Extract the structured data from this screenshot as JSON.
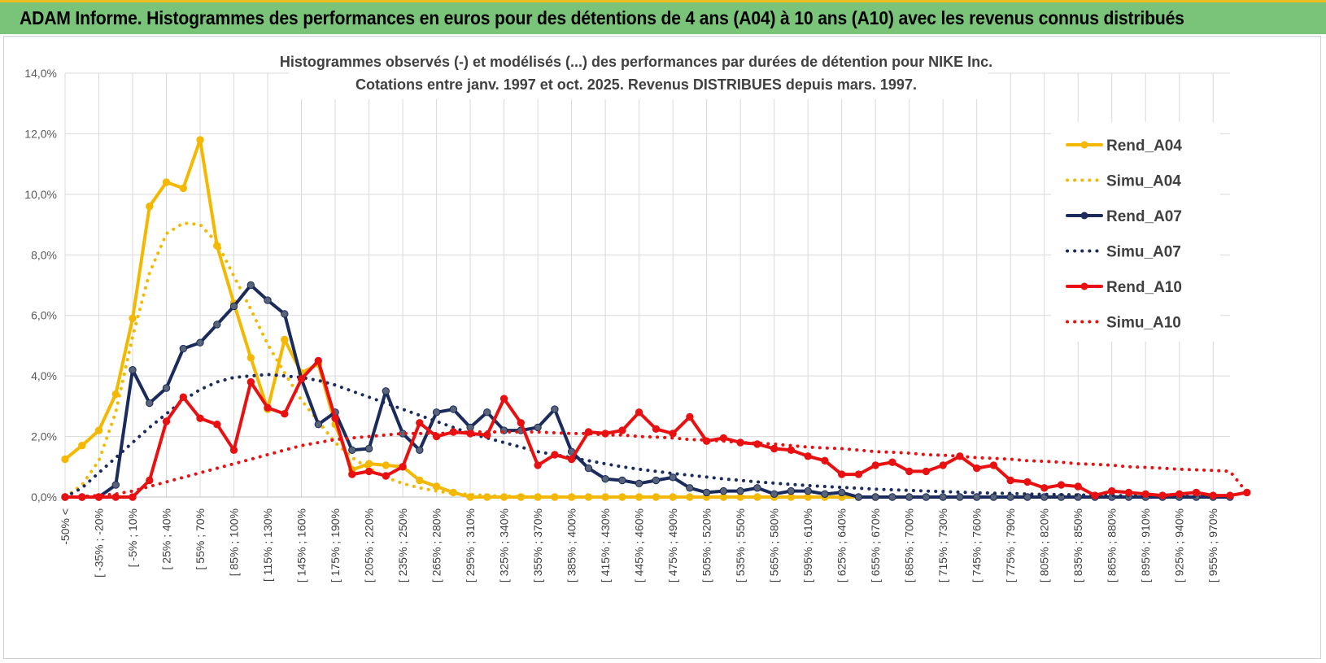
{
  "banner": {
    "title": "ADAM Informe. Histogrammes des performances en euros pour des détentions de 4 ans (A04) à 10 ans (A10) avec les revenus connus distribués"
  },
  "colors": {
    "banner_bg": "#7ac47a",
    "A04": "#f5b800",
    "A07": "#1a2b5c",
    "A10": "#e81010",
    "grid": "#d9d9d9"
  },
  "chart_data": {
    "type": "line",
    "title": "Histogrammes observés (-) et modélisés (...) des performances par durées de détention pour NIKE Inc.",
    "subtitle": "Cotations entre janv. 1997 et oct. 2025.  Revenus DISTRIBUES depuis mars. 1997.",
    "xlabel": "",
    "ylabel": "",
    "ylim": [
      0,
      14
    ],
    "y_unit": "%",
    "y_ticks": [
      "0,0%",
      "2,0%",
      "4,0%",
      "6,0%",
      "8,0%",
      "10,0%",
      "12,0%",
      "14,0%"
    ],
    "grid": true,
    "legend_position": "right",
    "x_tick_labels": [
      "-50% <",
      "[ -35% ; -20%",
      "[ -5% ; 10%",
      "[ 25% ; 40%",
      "[ 55% ; 70%",
      "[ 85% ; 100%",
      "[ 115% ; 130%",
      "[ 145% ; 160%",
      "[ 175% ; 190%",
      "[ 205% ; 220%",
      "[ 235% ; 250%",
      "[ 265% ; 280%",
      "[ 295% ; 310%",
      "[ 325% ; 340%",
      "[ 355% ; 370%",
      "[ 385% ; 400%",
      "[ 415% ; 430%",
      "[ 445% ; 460%",
      "[ 475% ; 490%",
      "[ 505% ; 520%",
      "[ 535% ; 550%",
      "[ 565% ; 580%",
      "[ 595% ; 610%",
      "[ 625% ; 640%",
      "[ 655% ; 670%",
      "[ 685% ; 700%",
      "[ 715% ; 730%",
      "[ 745% ; 760%",
      "[ 775% ; 790%",
      "[ 805% ; 820%",
      "[ 835% ; 850%",
      "[ 865% ; 880%",
      "[ 895% ; 910%",
      "[ 925% ; 940%",
      "[ 955% ; 970%"
    ],
    "series": [
      {
        "name": "Rend_A04",
        "style": "solid",
        "color": "#f5b800",
        "values": [
          1.25,
          1.7,
          2.2,
          3.4,
          5.9,
          9.6,
          10.4,
          10.2,
          11.8,
          8.3,
          6.4,
          4.6,
          2.9,
          5.2,
          4.1,
          4.4,
          2.4,
          0.9,
          1.1,
          1.05,
          1.0,
          0.55,
          0.35,
          0.15,
          0.0,
          0.0,
          0.0,
          0.0,
          0.0,
          0.0,
          0.0,
          0.0,
          0.0,
          0.0,
          0.0,
          0.0,
          0.0,
          0.0,
          0.0,
          0.0,
          0.0,
          0.0,
          0.0,
          0.0,
          0.0,
          0.0,
          0.0,
          0.0,
          0.0
        ]
      },
      {
        "name": "Simu_A04",
        "style": "dotted",
        "color": "#f5b800",
        "values": [
          0.0,
          0.4,
          1.2,
          2.8,
          5.3,
          7.4,
          8.7,
          9.05,
          9.0,
          8.4,
          7.3,
          6.2,
          5.05,
          4.1,
          3.2,
          2.5,
          1.8,
          1.3,
          0.95,
          0.65,
          0.45,
          0.3,
          0.2,
          0.12,
          0.08,
          0.05,
          0.03,
          0.02,
          0.0,
          0.0,
          0.0,
          0.0,
          0.0,
          0.0,
          0.0,
          0.0,
          0.0,
          0.0,
          0.0,
          0.0,
          0.0,
          0.0,
          0.0,
          0.0,
          0.0,
          0.0,
          0.0,
          0.0,
          0.0
        ]
      },
      {
        "name": "Rend_A07",
        "style": "solid",
        "color": "#1a2b5c",
        "values": [
          0.0,
          0.0,
          0.0,
          0.4,
          4.2,
          3.1,
          3.6,
          4.9,
          5.1,
          5.7,
          6.3,
          7.0,
          6.5,
          6.05,
          3.9,
          2.4,
          2.8,
          1.55,
          1.6,
          3.5,
          2.1,
          1.55,
          2.8,
          2.9,
          2.3,
          2.8,
          2.2,
          2.2,
          2.3,
          2.9,
          1.5,
          0.95,
          0.6,
          0.55,
          0.45,
          0.55,
          0.65,
          0.3,
          0.15,
          0.2,
          0.2,
          0.3,
          0.1,
          0.2,
          0.2,
          0.1,
          0.15,
          0.0,
          0.0,
          0.0,
          0.0,
          0.0,
          0.0,
          0.0,
          0.0,
          0.0,
          0.0,
          0.0,
          0.0,
          0.0,
          0.0,
          0.0,
          0.0,
          0.0,
          0.0,
          0.0,
          0.0,
          0.0,
          0.0,
          0.0
        ]
      },
      {
        "name": "Simu_A07",
        "style": "dotted",
        "color": "#1a2b5c",
        "values": [
          0.0,
          0.3,
          0.8,
          1.3,
          1.8,
          2.3,
          2.75,
          3.2,
          3.55,
          3.8,
          3.95,
          4.0,
          4.05,
          4.0,
          3.95,
          3.85,
          3.7,
          3.5,
          3.3,
          3.1,
          2.9,
          2.7,
          2.5,
          2.3,
          2.1,
          1.95,
          1.8,
          1.65,
          1.5,
          1.4,
          1.3,
          1.2,
          1.1,
          1.0,
          0.92,
          0.85,
          0.78,
          0.72,
          0.66,
          0.6,
          0.55,
          0.5,
          0.46,
          0.42,
          0.38,
          0.35,
          0.32,
          0.29,
          0.26,
          0.24,
          0.22,
          0.2,
          0.18,
          0.16,
          0.14,
          0.13,
          0.12,
          0.1,
          0.09,
          0.08,
          0.07,
          0.06,
          0.05,
          0.04,
          0.03,
          0.03,
          0.02,
          0.02,
          0.01,
          0.01
        ]
      },
      {
        "name": "Rend_A10",
        "style": "solid",
        "color": "#e81010",
        "values": [
          0.0,
          0.0,
          0.0,
          0.0,
          0.0,
          0.55,
          2.5,
          3.3,
          2.6,
          2.4,
          1.55,
          3.8,
          2.95,
          2.75,
          3.9,
          4.5,
          2.6,
          0.75,
          0.85,
          0.7,
          1.0,
          2.45,
          2.0,
          2.15,
          2.1,
          2.05,
          3.25,
          2.45,
          1.05,
          1.4,
          1.25,
          2.15,
          2.1,
          2.2,
          2.8,
          2.25,
          2.1,
          2.65,
          1.85,
          1.95,
          1.8,
          1.75,
          1.6,
          1.55,
          1.35,
          1.2,
          0.75,
          0.75,
          1.05,
          1.15,
          0.85,
          0.85,
          1.05,
          1.35,
          0.95,
          1.05,
          0.55,
          0.5,
          0.3,
          0.4,
          0.35,
          0.05,
          0.2,
          0.15,
          0.1,
          0.05,
          0.1,
          0.15,
          0.05,
          0.05,
          0.15
        ]
      },
      {
        "name": "Simu_A10",
        "style": "dotted",
        "color": "#e81010",
        "values": [
          0.0,
          0.02,
          0.05,
          0.1,
          0.2,
          0.35,
          0.5,
          0.65,
          0.8,
          0.95,
          1.1,
          1.25,
          1.4,
          1.55,
          1.7,
          1.8,
          1.9,
          1.95,
          2.0,
          2.05,
          2.1,
          2.1,
          2.1,
          2.12,
          2.15,
          2.15,
          2.15,
          2.15,
          2.15,
          2.12,
          2.1,
          2.1,
          2.05,
          2.05,
          2.0,
          1.98,
          1.95,
          1.9,
          1.88,
          1.85,
          1.8,
          1.78,
          1.75,
          1.7,
          1.65,
          1.62,
          1.6,
          1.55,
          1.5,
          1.48,
          1.45,
          1.4,
          1.38,
          1.35,
          1.3,
          1.28,
          1.25,
          1.2,
          1.18,
          1.15,
          1.1,
          1.08,
          1.05,
          1.0,
          0.98,
          0.95,
          0.92,
          0.9,
          0.88,
          0.85,
          0.15
        ]
      }
    ]
  }
}
